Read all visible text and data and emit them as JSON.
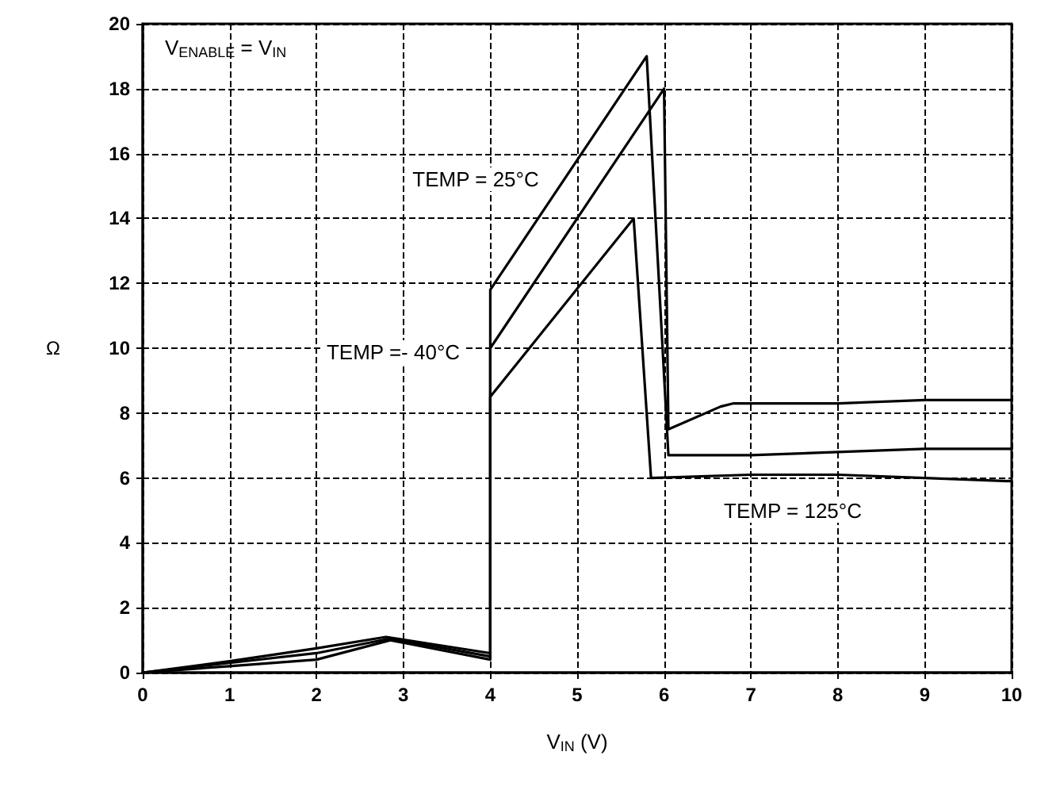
{
  "chart_data": {
    "type": "line",
    "xlabel": "V$_{IN}$ (V)",
    "ylabel": "Ω",
    "xlim": [
      0,
      10
    ],
    "xticks": [
      0,
      1,
      2,
      3,
      4,
      5,
      6,
      7,
      8,
      9,
      10
    ],
    "ylim": [
      0,
      20
    ],
    "yticks": [
      0,
      2,
      4,
      6,
      8,
      10,
      12,
      14,
      16,
      18,
      20
    ],
    "grid": true,
    "marker": "none",
    "line_style": "solid",
    "annotations": [
      "V$_{ENABLE}$ = V$_{IN}$",
      "TEMP = 25°C",
      "TEMP =- 40°C",
      "TEMP = 125°C"
    ],
    "series": [
      {
        "color": "#000000",
        "x": [
          0,
          1,
          2,
          2.8,
          4,
          4,
          5.8,
          6.05,
          7,
          8,
          9,
          10
        ],
        "values": [
          0,
          0.35,
          0.75,
          1.1,
          0.6,
          11.8,
          19,
          6.7,
          6.7,
          6.8,
          6.9,
          6.9
        ]
      },
      {
        "color": "#000000",
        "x": [
          0,
          1,
          2,
          2.85,
          4,
          4,
          6.0,
          6.05,
          6.65,
          6.8,
          8,
          9,
          10
        ],
        "values": [
          0,
          0.3,
          0.6,
          1.05,
          0.5,
          10,
          18,
          7.5,
          8.2,
          8.3,
          8.3,
          8.4,
          8.4
        ]
      },
      {
        "color": "#000000",
        "x": [
          0,
          1,
          2,
          2.85,
          4,
          4,
          5.65,
          5.85,
          7,
          8,
          9,
          10
        ],
        "values": [
          0,
          0.2,
          0.4,
          1.0,
          0.4,
          8.5,
          14,
          6.0,
          6.1,
          6.1,
          6.0,
          5.9
        ]
      }
    ]
  }
}
